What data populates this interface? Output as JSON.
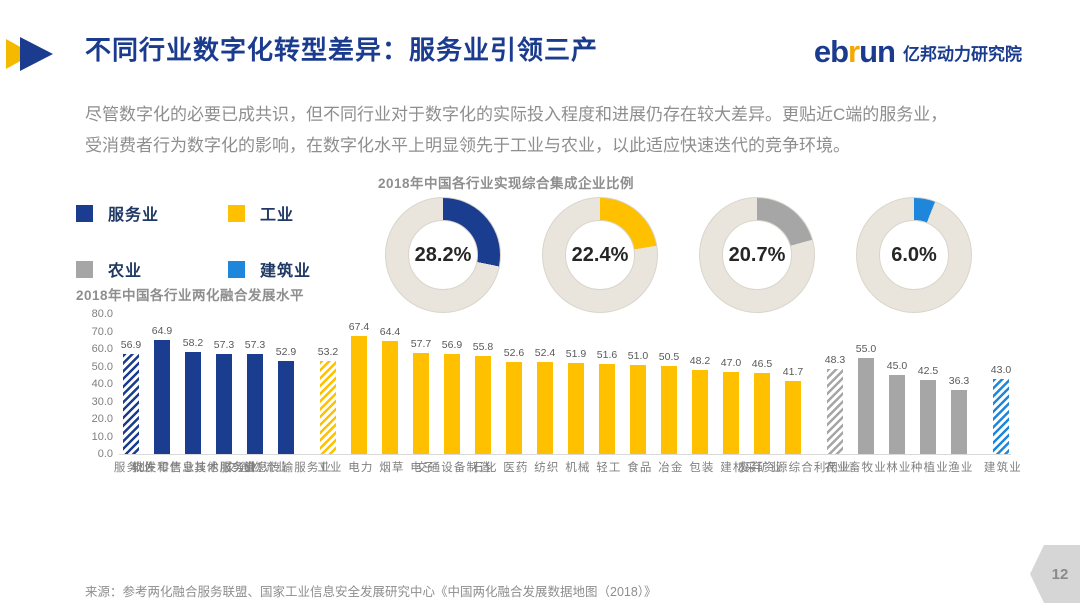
{
  "header": {
    "title": "不同行业数字化转型差异：服务业引领三产",
    "logo": {
      "part1": "eb",
      "part2": "r",
      "part3": "un",
      "suffix": "亿邦动力研究院"
    }
  },
  "intro": {
    "line1": "尽管数字化的必要已成共识，但不同行业对于数字化的实际投入程度和进展仍存在较大差异。更贴近C端的服务业，",
    "line2": "受消费者行为数字化的影响，在数字化水平上明显领先于工业与农业，以此适应快速迭代的竞争环境。"
  },
  "legend": {
    "items": [
      {
        "label": "服务业",
        "color": "#1B3D8F"
      },
      {
        "label": "工业",
        "color": "#FFC000"
      },
      {
        "label": "农业",
        "color": "#A6A6A6"
      },
      {
        "label": "建筑业",
        "color": "#1E86DB"
      }
    ]
  },
  "chart_data": [
    {
      "type": "pie",
      "title": "2018年中国各行业实现综合集成企业比例",
      "track_color": "#E9E5DD",
      "donuts": [
        {
          "label": "服务业",
          "value": 28.2,
          "color": "#1B3D8F"
        },
        {
          "label": "工业",
          "value": 22.4,
          "color": "#FFC000"
        },
        {
          "label": "农业",
          "value": 20.7,
          "color": "#A6A6A6"
        },
        {
          "label": "建筑业",
          "value": 6.0,
          "color": "#1E86DB"
        }
      ]
    },
    {
      "type": "bar",
      "title": "2018年中国各行业两化融合发展水平",
      "ylim": [
        0,
        80
      ],
      "ytick_step": 10,
      "grid": false,
      "groups": [
        {
          "name": "服务业",
          "color": "#1B3D8F",
          "bars": [
            {
              "label": "服务业",
              "value": 56.9,
              "hatched": true
            },
            {
              "label": "批发零售业",
              "value": 64.9
            },
            {
              "label": "软件和信息技术服务业",
              "value": 58.2
            },
            {
              "label": "其他服务业",
              "value": 57.3
            },
            {
              "label": "交通物流业",
              "value": 57.3
            },
            {
              "label": "信息传输服务业",
              "value": 52.9
            }
          ]
        },
        {
          "name": "工业",
          "color": "#FFC000",
          "bars": [
            {
              "label": "工业",
              "value": 53.2,
              "hatched": true
            },
            {
              "label": "电力",
              "value": 67.4
            },
            {
              "label": "烟草",
              "value": 64.4
            },
            {
              "label": "电子",
              "value": 57.7
            },
            {
              "label": "交通设备制造",
              "value": 56.9
            },
            {
              "label": "石化",
              "value": 55.8
            },
            {
              "label": "医药",
              "value": 52.6
            },
            {
              "label": "纺织",
              "value": 52.4
            },
            {
              "label": "机械",
              "value": 51.9
            },
            {
              "label": "轻工",
              "value": 51.6
            },
            {
              "label": "食品",
              "value": 51.0
            },
            {
              "label": "冶金",
              "value": 50.5
            },
            {
              "label": "包装",
              "value": 48.2
            },
            {
              "label": "建材",
              "value": 47.0
            },
            {
              "label": "采矿业",
              "value": 46.5
            },
            {
              "label": "废弃资源综合利用业",
              "value": 41.7
            }
          ]
        },
        {
          "name": "农业",
          "color": "#A6A6A6",
          "bars": [
            {
              "label": "农业",
              "value": 48.3,
              "hatched": true
            },
            {
              "label": "畜牧业",
              "value": 55.0
            },
            {
              "label": "林业",
              "value": 45.0
            },
            {
              "label": "种植业",
              "value": 42.5
            },
            {
              "label": "渔业",
              "value": 36.3
            }
          ]
        },
        {
          "name": "建筑业",
          "color": "#1E86DB",
          "bars": [
            {
              "label": "建筑业",
              "value": 43.0,
              "hatched": true
            }
          ]
        }
      ]
    }
  ],
  "footer": {
    "source": "来源：参考两化融合服务联盟、国家工业信息安全发展研究中心《中国两化融合发展数据地图（2018）》",
    "page": "12"
  }
}
